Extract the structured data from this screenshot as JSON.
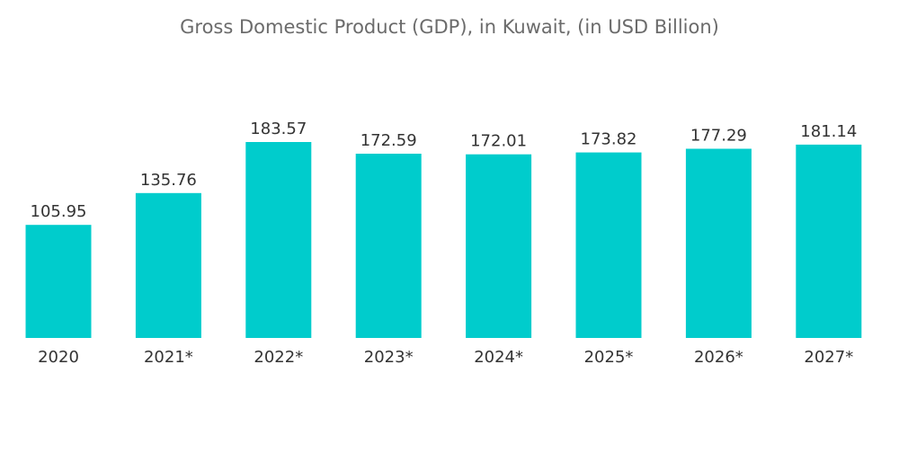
{
  "chart_data": {
    "type": "bar",
    "title": "Gross Domestic Product (GDP), in Kuwait, (in USD Billion)",
    "categories": [
      "2020",
      "2021*",
      "2022*",
      "2023*",
      "2024*",
      "2025*",
      "2026*",
      "2027*"
    ],
    "values": [
      105.95,
      135.76,
      183.57,
      172.59,
      172.01,
      173.82,
      177.29,
      181.14
    ],
    "value_labels": [
      "105.95",
      "135.76",
      "183.57",
      "172.59",
      "172.01",
      "173.82",
      "177.29",
      "181.14"
    ],
    "xlabel": "",
    "ylabel": "",
    "ylim": [
      0,
      183.57
    ],
    "grid": false,
    "legend": "none",
    "bar_color": "#00cccc"
  }
}
